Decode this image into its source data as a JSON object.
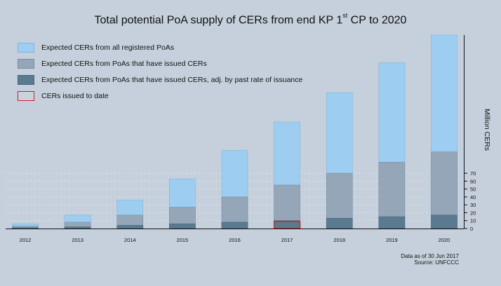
{
  "chart_data": {
    "type": "bar",
    "title": "Total potential PoA supply of CERs from end KP 1",
    "title_sup": "st",
    "title_tail": " CP to 2020",
    "ylabel": "Million CERs",
    "categories": [
      "2012",
      "2013",
      "2014",
      "2015",
      "2016",
      "2017",
      "2018",
      "2019",
      "2020"
    ],
    "series": [
      {
        "name": "Expected CERs from all registered PoAs",
        "color": "#9dcdf0",
        "values": [
          6,
          17,
          36,
          63,
          99,
          135,
          172,
          210,
          245
        ]
      },
      {
        "name": "Expected CERs from PoAs that have issued CERs",
        "color": "#94a6b8",
        "values": [
          3,
          8,
          17,
          27,
          40,
          55,
          70,
          84,
          97
        ]
      },
      {
        "name": "Expected CERs from PoAs that have issued CERs, adj. by past rate of issuance",
        "color": "#5a7a90",
        "values": [
          1,
          2,
          4,
          6,
          8,
          10,
          13,
          15,
          17
        ]
      }
    ],
    "issued": {
      "name": "CERs issued to date",
      "category": "2017",
      "value": 9,
      "color": "#d11e1e"
    },
    "ylim": [
      0,
      245
    ],
    "yticks": [
      0,
      10,
      20,
      30,
      40,
      50,
      60,
      70
    ],
    "grid": "dotted",
    "legend_position": "top-left"
  },
  "footer": {
    "line1": "Data as of 30 Jun 2017",
    "line2": "Source: UNFCCC"
  }
}
